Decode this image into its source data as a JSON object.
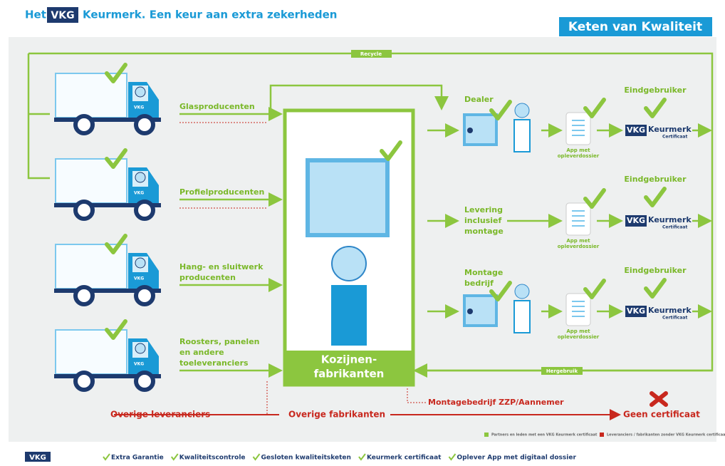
{
  "header": {
    "prefix": "Het",
    "logo": "VKG",
    "title": "Keurmerk. Een keur aan extra zekerheden",
    "badge": "Keten van Kwaliteit"
  },
  "flows": {
    "recycle": "Recycle",
    "reuse": "Hergebruik"
  },
  "suppliers": [
    [
      "Glasproducenten"
    ],
    [
      "Profielproducenten"
    ],
    [
      "Hang- en sluitwerk",
      "producenten"
    ],
    [
      "Roosters, panelen",
      "en andere",
      "toeleveranciers"
    ]
  ],
  "manufacturer": [
    "Kozijnen-",
    "fabrikanten"
  ],
  "channels": [
    {
      "label": [
        "Dealer"
      ],
      "app": [
        "App met",
        "opleverdossier"
      ],
      "end": "Eindgebruiker"
    },
    {
      "label": [
        "Levering",
        "inclusief",
        "montage"
      ],
      "app": [
        "App met",
        "opleverdossier"
      ],
      "end": "Eindgebruiker"
    },
    {
      "label": [
        "Montage",
        "bedrijf"
      ],
      "app": [
        "App met",
        "opleverdossier"
      ],
      "end": "Eindgebruiker"
    }
  ],
  "certificate": {
    "logo": "VKG",
    "name": "Keurmerk",
    "sub": "Certificaat"
  },
  "others": {
    "suppliers": "Overige leveranciers",
    "manufacturers": "Overige fabrikanten",
    "installer": "Montagebedrijf ZZP/Aannemer",
    "result": "Geen certificaat"
  },
  "legend": [
    "Partners en leden met een VKG Keurmerk certificaat",
    "Leveranciers / fabrikanten zonder VKG Keurmerk certificaat"
  ],
  "footer": {
    "logo": "VKG",
    "items": [
      "Extra Garantie",
      "Kwaliteitscontrole",
      "Gesloten kwaliteitsketen",
      "Keurmerk certificaat",
      "Oplever App met digitaal dossier"
    ]
  }
}
